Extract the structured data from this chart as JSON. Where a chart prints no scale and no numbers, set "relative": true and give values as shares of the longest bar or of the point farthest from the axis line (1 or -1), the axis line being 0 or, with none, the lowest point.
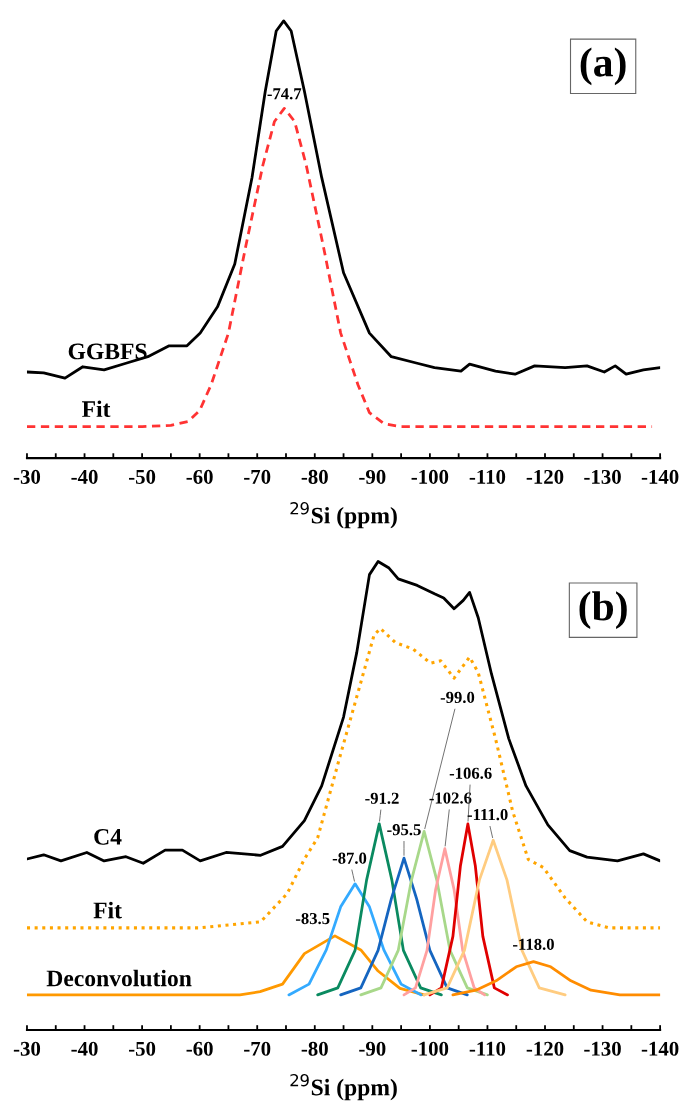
{
  "chart_data": [
    {
      "type": "line",
      "relative": true,
      "xlabel": "$^{29}$Si (ppm)",
      "xlim": [
        -30,
        -140
      ],
      "xticks": [
        -30,
        {
          "value": -35,
          "label": null
        },
        -40,
        {
          "value": -45,
          "label": null
        },
        -50,
        {
          "value": -55,
          "label": null
        },
        -60,
        {
          "value": -65,
          "label": null
        },
        -70,
        {
          "value": -75,
          "label": null
        },
        -80,
        {
          "value": -85,
          "label": null
        },
        -90,
        {
          "value": -95,
          "label": null
        },
        -100,
        {
          "value": -105,
          "label": null
        },
        -110,
        {
          "value": -115,
          "label": null
        },
        -120,
        {
          "value": -125,
          "label": null
        },
        -130,
        {
          "value": -135,
          "label": null
        },
        -140
      ],
      "grid": false,
      "legend": false,
      "annotations": [
        "(a)",
        {
          "text": "-74.7",
          "x": -74.7,
          "y": 0.8
        }
      ],
      "series": [
        {
          "name": "GGBFS",
          "color": "#000000",
          "line_style": "solid",
          "x": [
            -30,
            -32.9,
            -36.6,
            -39.7,
            -43.4,
            -47.2,
            -51.0,
            -54.7,
            -57.8,
            -60.1,
            -63.1,
            -66.1,
            -69.1,
            -71.4,
            -73.3,
            -74.6,
            -75.9,
            -78.2,
            -81.2,
            -85.0,
            -89.5,
            -93.3,
            -97.8,
            -100.8,
            -105.4,
            -106.9,
            -111.4,
            -114.8,
            -118.2,
            -123.5,
            -127.3,
            -130.3,
            -132.2,
            -134.1,
            -137.1,
            -140
          ],
          "values": [
            0.197,
            0.195,
            0.183,
            0.209,
            0.202,
            0.217,
            0.232,
            0.257,
            0.257,
            0.286,
            0.346,
            0.444,
            0.642,
            0.839,
            0.977,
            1.0,
            0.977,
            0.839,
            0.642,
            0.424,
            0.286,
            0.232,
            0.217,
            0.207,
            0.199,
            0.215,
            0.199,
            0.192,
            0.211,
            0.207,
            0.211,
            0.197,
            0.211,
            0.192,
            0.202,
            0.207
          ]
        },
        {
          "name": "Fit",
          "color": "#ff3333",
          "line_style": "dashed",
          "x": [
            -30,
            -50,
            -55,
            -58,
            -60,
            -62,
            -65,
            -68,
            -71,
            -73,
            -74.7,
            -76.5,
            -78.5,
            -81.5,
            -84.5,
            -87.5,
            -89.5,
            -92,
            -95,
            -138.6
          ],
          "values": [
            0.072,
            0.072,
            0.075,
            0.084,
            0.109,
            0.168,
            0.286,
            0.484,
            0.671,
            0.77,
            0.8,
            0.77,
            0.671,
            0.484,
            0.286,
            0.168,
            0.104,
            0.079,
            0.072,
            0.072
          ]
        }
      ]
    },
    {
      "type": "line",
      "relative": true,
      "xlabel": "$^{29}$Si (ppm)",
      "xlim": [
        -30,
        -140
      ],
      "xticks": [
        -30,
        {
          "value": -35,
          "label": null
        },
        -40,
        {
          "value": -45,
          "label": null
        },
        -50,
        {
          "value": -55,
          "label": null
        },
        -60,
        {
          "value": -65,
          "label": null
        },
        -70,
        {
          "value": -75,
          "label": null
        },
        -80,
        {
          "value": -85,
          "label": null
        },
        -90,
        {
          "value": -95,
          "label": null
        },
        -100,
        {
          "value": -105,
          "label": null
        },
        -110,
        {
          "value": -115,
          "label": null
        },
        -120,
        {
          "value": -125,
          "label": null
        },
        -130,
        {
          "value": -135,
          "label": null
        },
        -140
      ],
      "grid": false,
      "legend": false,
      "annotations": [
        "(b)",
        {
          "text": "-83.5",
          "x": -83.5,
          "y": 0.201
        },
        {
          "text": "-87.0",
          "x": -87.0,
          "y": 0.312
        },
        {
          "text": "-91.2",
          "x": -91.2,
          "y": 0.44
        },
        {
          "text": "-95.5",
          "x": -95.5,
          "y": 0.367
        },
        {
          "text": "-99.0",
          "x": -99.0,
          "y": 0.424
        },
        {
          "text": "-102.6",
          "x": -102.6,
          "y": 0.387
        },
        {
          "text": "-106.6",
          "x": -106.6,
          "y": 0.44
        },
        {
          "text": "-111.0",
          "x": -111.0,
          "y": 0.405
        },
        {
          "text": "-118.0",
          "x": -118.0,
          "y": 0.146
        }
      ],
      "series": [
        {
          "name": "C4",
          "color": "#000000",
          "line_style": "solid",
          "x": [
            -30,
            -32.9,
            -35.9,
            -40.4,
            -43.4,
            -47.2,
            -50.2,
            -54.0,
            -57.0,
            -60.1,
            -64.6,
            -70.6,
            -74.4,
            -78.2,
            -81.2,
            -85.0,
            -87.3,
            -89.5,
            -91.0,
            -92.9,
            -94.5,
            -97.8,
            -100.8,
            -102.4,
            -104.2,
            -105.8,
            -106.9,
            -108.4,
            -110.7,
            -113.7,
            -116.7,
            -120.5,
            -124.3,
            -127.3,
            -132.6,
            -137.1,
            -140
          ],
          "values": [
            0.365,
            0.374,
            0.361,
            0.379,
            0.361,
            0.37,
            0.356,
            0.384,
            0.384,
            0.361,
            0.379,
            0.373,
            0.392,
            0.447,
            0.521,
            0.668,
            0.806,
            0.972,
            1.0,
            0.986,
            0.963,
            0.949,
            0.931,
            0.922,
            0.899,
            0.917,
            0.934,
            0.88,
            0.76,
            0.622,
            0.521,
            0.438,
            0.383,
            0.369,
            0.361,
            0.376,
            0.361
          ]
        },
        {
          "name": "Fit",
          "color": "#ffa500",
          "line_style": "dotted",
          "x": [
            -30,
            -60,
            -70.6,
            -75.2,
            -78.2,
            -80.5,
            -84.2,
            -88.0,
            -90.3,
            -91.4,
            -94.0,
            -97.1,
            -100.1,
            -101.9,
            -104.2,
            -106.9,
            -108.4,
            -111.4,
            -114.4,
            -117.1,
            -119.7,
            -123.5,
            -127.3,
            -131.1,
            -140
          ],
          "values": [
            0.218,
            0.218,
            0.231,
            0.291,
            0.365,
            0.41,
            0.576,
            0.742,
            0.843,
            0.857,
            0.827,
            0.813,
            0.783,
            0.788,
            0.751,
            0.796,
            0.763,
            0.622,
            0.466,
            0.364,
            0.347,
            0.282,
            0.231,
            0.218,
            0.218
          ]
        },
        {
          "name": "Deconvolution",
          "color": "#ff9900",
          "line_style": "solid",
          "x": [
            -30,
            -67,
            -70.5,
            -74.4,
            -78.2,
            -83.5,
            -88,
            -91,
            -94.8,
            -99
          ],
          "values": [
            0.075,
            0.075,
            0.082,
            0.098,
            0.163,
            0.201,
            0.171,
            0.126,
            0.089,
            0.075
          ]
        },
        {
          "color": "#33aaff",
          "line_style": "solid",
          "x": [
            -75.5,
            -79,
            -82,
            -84.5,
            -87,
            -89.5,
            -92,
            -95,
            -98.5
          ],
          "values": [
            0.075,
            0.098,
            0.171,
            0.263,
            0.312,
            0.263,
            0.171,
            0.098,
            0.075
          ]
        },
        {
          "color": "#0a8a60",
          "line_style": "solid",
          "x": [
            -80.5,
            -84,
            -87,
            -89,
            -91.2,
            -93.4,
            -95.4,
            -98.4,
            -102
          ],
          "values": [
            0.075,
            0.09,
            0.17,
            0.32,
            0.44,
            0.32,
            0.17,
            0.09,
            0.075
          ]
        },
        {
          "color": "#1565c0",
          "line_style": "solid",
          "x": [
            -84.5,
            -88,
            -91,
            -93.3,
            -95.5,
            -97.7,
            -100,
            -103,
            -106.5
          ],
          "values": [
            0.075,
            0.09,
            0.17,
            0.28,
            0.367,
            0.28,
            0.17,
            0.09,
            0.075
          ]
        },
        {
          "color": "#a8d88a",
          "line_style": "solid",
          "x": [
            -88,
            -91.5,
            -94.5,
            -96.8,
            -99,
            -101.2,
            -103.5,
            -106.5,
            -110
          ],
          "values": [
            0.075,
            0.09,
            0.17,
            0.32,
            0.424,
            0.32,
            0.17,
            0.09,
            0.075
          ]
        },
        {
          "color": "#ffa0a0",
          "line_style": "solid",
          "x": [
            -95.5,
            -97.5,
            -99.5,
            -101,
            -102.6,
            -104.2,
            -105.7,
            -107.7,
            -109.5
          ],
          "values": [
            0.075,
            0.09,
            0.17,
            0.3,
            0.387,
            0.3,
            0.17,
            0.09,
            0.075
          ]
        },
        {
          "color": "#e00000",
          "line_style": "solid",
          "x": [
            -100,
            -102,
            -104,
            -105.3,
            -106.6,
            -107.9,
            -109.2,
            -111.2,
            -113.5
          ],
          "values": [
            0.075,
            0.09,
            0.2,
            0.35,
            0.44,
            0.35,
            0.2,
            0.09,
            0.075
          ]
        },
        {
          "color": "#ffcc80",
          "line_style": "solid",
          "x": [
            -99,
            -103,
            -106,
            -108.6,
            -111,
            -113.4,
            -116,
            -119,
            -123.5
          ],
          "values": [
            0.075,
            0.09,
            0.17,
            0.32,
            0.405,
            0.32,
            0.17,
            0.09,
            0.075
          ]
        },
        {
          "color": "#ff8c00",
          "line_style": "solid",
          "x": [
            -104,
            -108,
            -111.5,
            -115,
            -118,
            -121,
            -124.5,
            -128,
            -133,
            -140
          ],
          "values": [
            0.075,
            0.085,
            0.105,
            0.135,
            0.146,
            0.135,
            0.105,
            0.085,
            0.075,
            0.075
          ]
        }
      ]
    }
  ]
}
